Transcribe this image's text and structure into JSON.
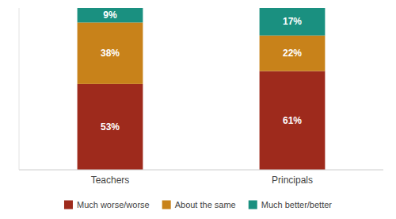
{
  "chart_data": {
    "type": "bar",
    "stacked": true,
    "categories": [
      "Teachers",
      "Principals"
    ],
    "series": [
      {
        "name": "Much worse/worse",
        "color": "#9e2a1c",
        "values": [
          53,
          61
        ],
        "value_labels": [
          "53%",
          "61%"
        ]
      },
      {
        "name": "About the same",
        "color": "#c8821a",
        "values": [
          38,
          22
        ],
        "value_labels": [
          "38%",
          "22%"
        ]
      },
      {
        "name": "Much better/better",
        "color": "#1a9080",
        "values": [
          9,
          17
        ],
        "value_labels": [
          "9%",
          "17%"
        ]
      }
    ],
    "ylim": [
      0,
      100
    ],
    "data_labels": true,
    "tick_labels": "x",
    "legend": "bottom",
    "grid": false
  }
}
